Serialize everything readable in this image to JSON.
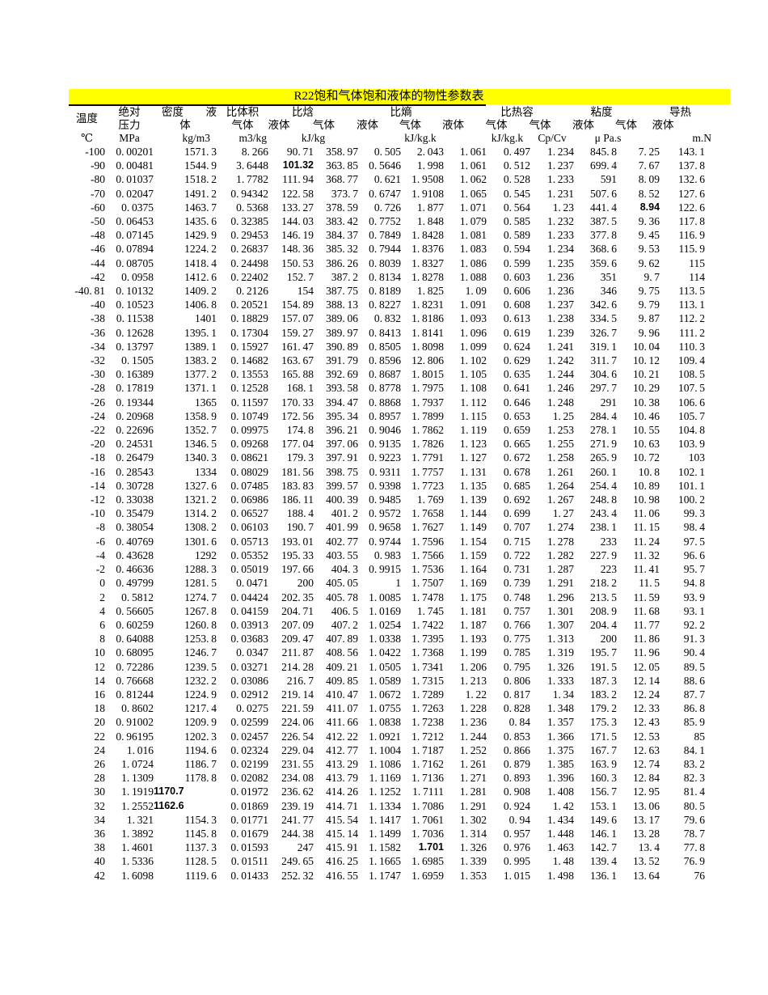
{
  "page": {
    "title": "R22饱和气体饱和液体的物性参数表",
    "title_bg": "#FFFF00",
    "text_color": "#000000",
    "background": "#FFFFFF"
  },
  "header": {
    "group_row": {
      "temperature": "温度",
      "pressure": "绝对",
      "density_a": "密度",
      "density_b": "液",
      "density_line2": "体",
      "volume": "比体积",
      "enthalpy": "比焓",
      "entropy": "比熵",
      "heat_capacity": "比热容",
      "viscosity": "粘度",
      "conductivity": "导热"
    },
    "sub_row": [
      "压力",
      "体",
      "气体",
      "液体",
      "气体",
      "液体",
      "气体",
      "液体",
      "气体",
      "气体",
      "液体",
      "气体",
      "液体"
    ],
    "units": [
      "℃",
      "MPa",
      "kg/m3",
      "m3/kg",
      "kJ/kg",
      "kJ/kg.k",
      "kJ/kg.k",
      "Cp/Cv",
      "μ Pa.s",
      "m.N"
    ]
  },
  "table": {
    "rows": [
      [
        "-100",
        "0.00201",
        "1571.3",
        "8.266",
        "90.71",
        "358.97",
        "0.505",
        "2.043",
        "1.061",
        "0.497",
        "1.234",
        "845.8",
        "7.25",
        "143.1"
      ],
      [
        "-90",
        "0.00481",
        "1544.9",
        "3.6448",
        "101.32",
        "363.85",
        "0.5646",
        "1.998",
        "1.061",
        "0.512",
        "1.237",
        "699.4",
        "7.67",
        "137.8"
      ],
      [
        "-80",
        "0.01037",
        "1518.2",
        "1.7782",
        "111.94",
        "368.77",
        "0.621",
        "1.9508",
        "1.062",
        "0.528",
        "1.233",
        "591",
        "8.09",
        "132.6"
      ],
      [
        "-70",
        "0.02047",
        "1491.2",
        "0.94342",
        "122.58",
        "373.7",
        "0.6747",
        "1.9108",
        "1.065",
        "0.545",
        "1.231",
        "507.6",
        "8.52",
        "127.6"
      ],
      [
        "-60",
        "0.0375",
        "1463.7",
        "0.5368",
        "133.27",
        "378.59",
        "0.726",
        "1.877",
        "1.071",
        "0.564",
        "1.23",
        "441.4",
        "8.94",
        "122.6"
      ],
      [
        "-50",
        "0.06453",
        "1435.6",
        "0.32385",
        "144.03",
        "383.42",
        "0.7752",
        "1.848",
        "1.079",
        "0.585",
        "1.232",
        "387.5",
        "9.36",
        "117.8"
      ],
      [
        "-48",
        "0.07145",
        "1429.9",
        "0.29453",
        "146.19",
        "384.37",
        "0.7849",
        "1.8428",
        "1.081",
        "0.589",
        "1.233",
        "377.8",
        "9.45",
        "116.9"
      ],
      [
        "-46",
        "0.07894",
        "1224.2",
        "0.26837",
        "148.36",
        "385.32",
        "0.7944",
        "1.8376",
        "1.083",
        "0.594",
        "1.234",
        "368.6",
        "9.53",
        "115.9"
      ],
      [
        "-44",
        "0.08705",
        "1418.4",
        "0.24498",
        "150.53",
        "386.26",
        "0.8039",
        "1.8327",
        "1.086",
        "0.599",
        "1.235",
        "359.6",
        "9.62",
        "115"
      ],
      [
        "-42",
        "0.0958",
        "1412.6",
        "0.22402",
        "152.7",
        "387.2",
        "0.8134",
        "1.8278",
        "1.088",
        "0.603",
        "1.236",
        "351",
        "9.7",
        "114"
      ],
      [
        "-40.81",
        "0.10132",
        "1409.2",
        "0.2126",
        "154",
        "387.75",
        "0.8189",
        "1.825",
        "1.09",
        "0.606",
        "1.236",
        "346",
        "9.75",
        "113.5"
      ],
      [
        "-40",
        "0.10523",
        "1406.8",
        "0.20521",
        "154.89",
        "388.13",
        "0.8227",
        "1.8231",
        "1.091",
        "0.608",
        "1.237",
        "342.6",
        "9.79",
        "113.1"
      ],
      [
        "-38",
        "0.11538",
        "1401",
        "0.18829",
        "157.07",
        "389.06",
        "0.832",
        "1.8186",
        "1.093",
        "0.613",
        "1.238",
        "334.5",
        "9.87",
        "112.2"
      ],
      [
        "-36",
        "0.12628",
        "1395.1",
        "0.17304",
        "159.27",
        "389.97",
        "0.8413",
        "1.8141",
        "1.096",
        "0.619",
        "1.239",
        "326.7",
        "9.96",
        "111.2"
      ],
      [
        "-34",
        "0.13797",
        "1389.1",
        "0.15927",
        "161.47",
        "390.89",
        "0.8505",
        "1.8098",
        "1.099",
        "0.624",
        "1.241",
        "319.1",
        "10.04",
        "110.3"
      ],
      [
        "-32",
        "0.1505",
        "1383.2",
        "0.14682",
        "163.67",
        "391.79",
        "0.8596",
        "12.806",
        "1.102",
        "0.629",
        "1.242",
        "311.7",
        "10.12",
        "109.4"
      ],
      [
        "-30",
        "0.16389",
        "1377.2",
        "0.13553",
        "165.88",
        "392.69",
        "0.8687",
        "1.8015",
        "1.105",
        "0.635",
        "1.244",
        "304.6",
        "10.21",
        "108.5"
      ],
      [
        "-28",
        "0.17819",
        "1371.1",
        "0.12528",
        "168.1",
        "393.58",
        "0.8778",
        "1.7975",
        "1.108",
        "0.641",
        "1.246",
        "297.7",
        "10.29",
        "107.5"
      ],
      [
        "-26",
        "0.19344",
        "1365",
        "0.11597",
        "170.33",
        "394.47",
        "0.8868",
        "1.7937",
        "1.112",
        "0.646",
        "1.248",
        "291",
        "10.38",
        "106.6"
      ],
      [
        "-24",
        "0.20968",
        "1358.9",
        "0.10749",
        "172.56",
        "395.34",
        "0.8957",
        "1.7899",
        "1.115",
        "0.653",
        "1.25",
        "284.4",
        "10.46",
        "105.7"
      ],
      [
        "-22",
        "0.22696",
        "1352.7",
        "0.09975",
        "174.8",
        "396.21",
        "0.9046",
        "1.7862",
        "1.119",
        "0.659",
        "1.253",
        "278.1",
        "10.55",
        "104.8"
      ],
      [
        "-20",
        "0.24531",
        "1346.5",
        "0.09268",
        "177.04",
        "397.06",
        "0.9135",
        "1.7826",
        "1.123",
        "0.665",
        "1.255",
        "271.9",
        "10.63",
        "103.9"
      ],
      [
        "-18",
        "0.26479",
        "1340.3",
        "0.08621",
        "179.3",
        "397.91",
        "0.9223",
        "1.7791",
        "1.127",
        "0.672",
        "1.258",
        "265.9",
        "10.72",
        "103"
      ],
      [
        "-16",
        "0.28543",
        "1334",
        "0.08029",
        "181.56",
        "398.75",
        "0.9311",
        "1.7757",
        "1.131",
        "0.678",
        "1.261",
        "260.1",
        "10.8",
        "102.1"
      ],
      [
        "-14",
        "0.30728",
        "1327.6",
        "0.07485",
        "183.83",
        "399.57",
        "0.9398",
        "1.7723",
        "1.135",
        "0.685",
        "1.264",
        "254.4",
        "10.89",
        "101.1"
      ],
      [
        "-12",
        "0.33038",
        "1321.2",
        "0.06986",
        "186.11",
        "400.39",
        "0.9485",
        "1.769",
        "1.139",
        "0.692",
        "1.267",
        "248.8",
        "10.98",
        "100.2"
      ],
      [
        "-10",
        "0.35479",
        "1314.2",
        "0.06527",
        "188.4",
        "401.2",
        "0.9572",
        "1.7658",
        "1.144",
        "0.699",
        "1.27",
        "243.4",
        "11.06",
        "99.3"
      ],
      [
        "-8",
        "0.38054",
        "1308.2",
        "0.06103",
        "190.7",
        "401.99",
        "0.9658",
        "1.7627",
        "1.149",
        "0.707",
        "1.274",
        "238.1",
        "11.15",
        "98.4"
      ],
      [
        "-6",
        "0.40769",
        "1301.6",
        "0.05713",
        "193.01",
        "402.77",
        "0.9744",
        "1.7596",
        "1.154",
        "0.715",
        "1.278",
        "233",
        "11.24",
        "97.5"
      ],
      [
        "-4",
        "0.43628",
        "1292",
        "0.05352",
        "195.33",
        "403.55",
        "0.983",
        "1.7566",
        "1.159",
        "0.722",
        "1.282",
        "227.9",
        "11.32",
        "96.6"
      ],
      [
        "-2",
        "0.46636",
        "1288.3",
        "0.05019",
        "197.66",
        "404.3",
        "0.9915",
        "1.7536",
        "1.164",
        "0.731",
        "1.287",
        "223",
        "11.41",
        "95.7"
      ],
      [
        "0",
        "0.49799",
        "1281.5",
        "0.0471",
        "200",
        "405.05",
        "1",
        "1.7507",
        "1.169",
        "0.739",
        "1.291",
        "218.2",
        "11.5",
        "94.8"
      ],
      [
        "2",
        "0.5812",
        "1274.7",
        "0.04424",
        "202.35",
        "405.78",
        "1.0085",
        "1.7478",
        "1.175",
        "0.748",
        "1.296",
        "213.5",
        "11.59",
        "93.9"
      ],
      [
        "4",
        "0.56605",
        "1267.8",
        "0.04159",
        "204.71",
        "406.5",
        "1.0169",
        "1.745",
        "1.181",
        "0.757",
        "1.301",
        "208.9",
        "11.68",
        "93.1"
      ],
      [
        "6",
        "0.60259",
        "1260.8",
        "0.03913",
        "207.09",
        "407.2",
        "1.0254",
        "1.7422",
        "1.187",
        "0.766",
        "1.307",
        "204.4",
        "11.77",
        "92.2"
      ],
      [
        "8",
        "0.64088",
        "1253.8",
        "0.03683",
        "209.47",
        "407.89",
        "1.0338",
        "1.7395",
        "1.193",
        "0.775",
        "1.313",
        "200",
        "11.86",
        "91.3"
      ],
      [
        "10",
        "0.68095",
        "1246.7",
        "0.0347",
        "211.87",
        "408.56",
        "1.0422",
        "1.7368",
        "1.199",
        "0.785",
        "1.319",
        "195.7",
        "11.96",
        "90.4"
      ],
      [
        "12",
        "0.72286",
        "1239.5",
        "0.03271",
        "214.28",
        "409.21",
        "1.0505",
        "1.7341",
        "1.206",
        "0.795",
        "1.326",
        "191.5",
        "12.05",
        "89.5"
      ],
      [
        "14",
        "0.76668",
        "1232.2",
        "0.03086",
        "216.7",
        "409.85",
        "1.0589",
        "1.7315",
        "1.213",
        "0.806",
        "1.333",
        "187.3",
        "12.14",
        "88.6"
      ],
      [
        "16",
        "0.81244",
        "1224.9",
        "0.02912",
        "219.14",
        "410.47",
        "1.0672",
        "1.7289",
        "1.22",
        "0.817",
        "1.34",
        "183.2",
        "12.24",
        "87.7"
      ],
      [
        "18",
        "0.8602",
        "1217.4",
        "0.0275",
        "221.59",
        "411.07",
        "1.0755",
        "1.7263",
        "1.228",
        "0.828",
        "1.348",
        "179.2",
        "12.33",
        "86.8"
      ],
      [
        "20",
        "0.91002",
        "1209.9",
        "0.02599",
        "224.06",
        "411.66",
        "1.0838",
        "1.7238",
        "1.236",
        "0.84",
        "1.357",
        "175.3",
        "12.43",
        "85.9"
      ],
      [
        "22",
        "0.96195",
        "1202.3",
        "0.02457",
        "226.54",
        "412.22",
        "1.0921",
        "1.7212",
        "1.244",
        "0.853",
        "1.366",
        "171.5",
        "12.53",
        "85"
      ],
      [
        "24",
        "1.016",
        "1194.6",
        "0.02324",
        "229.04",
        "412.77",
        "1.1004",
        "1.7187",
        "1.252",
        "0.866",
        "1.375",
        "167.7",
        "12.63",
        "84.1"
      ],
      [
        "26",
        "1.0724",
        "1186.7",
        "0.02199",
        "231.55",
        "413.29",
        "1.1086",
        "1.7162",
        "1.261",
        "0.879",
        "1.385",
        "163.9",
        "12.74",
        "83.2"
      ],
      [
        "28",
        "1.1309",
        "1178.8",
        "0.02082",
        "234.08",
        "413.79",
        "1.1169",
        "1.7136",
        "1.271",
        "0.893",
        "1.396",
        "160.3",
        "12.84",
        "82.3"
      ],
      [
        "30",
        "1.1919",
        "1170.7",
        "0.01972",
        "236.62",
        "414.26",
        "1.1252",
        "1.7111",
        "1.281",
        "0.908",
        "1.408",
        "156.7",
        "12.95",
        "81.4"
      ],
      [
        "32",
        "1.2552",
        "1162.6",
        "0.01869",
        "239.19",
        "414.71",
        "1.1334",
        "1.7086",
        "1.291",
        "0.924",
        "1.42",
        "153.1",
        "13.06",
        "80.5"
      ],
      [
        "34",
        "1.321",
        "1154.3",
        "0.01771",
        "241.77",
        "415.54",
        "1.1417",
        "1.7061",
        "1.302",
        "0.94",
        "1.434",
        "149.6",
        "13.17",
        "79.6"
      ],
      [
        "36",
        "1.3892",
        "1145.8",
        "0.01679",
        "244.38",
        "415.14",
        "1.1499",
        "1.7036",
        "1.314",
        "0.957",
        "1.448",
        "146.1",
        "13.28",
        "78.7"
      ],
      [
        "38",
        "1.4601",
        "1137.3",
        "0.01593",
        "247",
        "415.91",
        "1.1582",
        "1.701",
        "1.326",
        "0.976",
        "1.463",
        "142.7",
        "13.4",
        "77.8"
      ],
      [
        "40",
        "1.5336",
        "1128.5",
        "0.01511",
        "249.65",
        "416.25",
        "1.1665",
        "1.6985",
        "1.339",
        "0.995",
        "1.48",
        "139.4",
        "13.52",
        "76.9"
      ],
      [
        "42",
        "1.6098",
        "1119.6",
        "0.01433",
        "252.32",
        "416.55",
        "1.1747",
        "1.6959",
        "1.353",
        "1.015",
        "1.498",
        "136.1",
        "13.64",
        "76"
      ]
    ],
    "edited_cells": [
      {
        "row": 1,
        "col": 4
      },
      {
        "row": 4,
        "col": 12
      },
      {
        "row": 46,
        "col": 2,
        "align": "left"
      },
      {
        "row": 47,
        "col": 2,
        "align": "left"
      },
      {
        "row": 50,
        "col": 7
      }
    ]
  }
}
